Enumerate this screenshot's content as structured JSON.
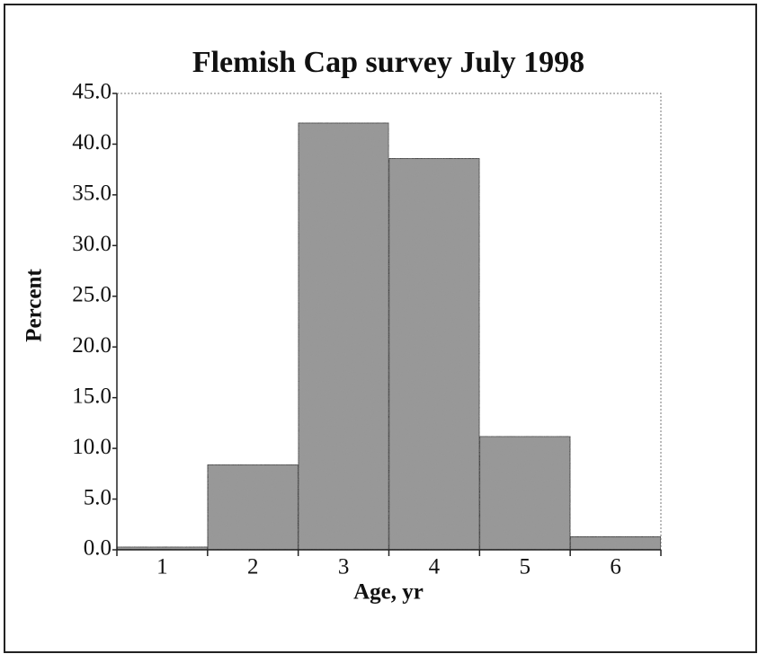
{
  "chart_data": {
    "type": "bar",
    "title": "Flemish Cap survey July 1998",
    "x_label": "Age, yr",
    "y_label": "Percent",
    "categories": [
      "1",
      "2",
      "3",
      "4",
      "5",
      "6"
    ],
    "values": [
      0.3,
      8.4,
      42.1,
      38.6,
      11.2,
      1.3
    ],
    "color": "#9a9a9a",
    "ylim": [
      0,
      45
    ],
    "yticks": [
      {
        "value": 0,
        "label": "0.0"
      },
      {
        "value": 5,
        "label": "5.0"
      },
      {
        "value": 10,
        "label": "10.0"
      },
      {
        "value": 15,
        "label": "15.0"
      },
      {
        "value": 20,
        "label": "20.0"
      },
      {
        "value": 25,
        "label": "25.0"
      },
      {
        "value": 30,
        "label": "30.0"
      },
      {
        "value": 35,
        "label": "35.0"
      },
      {
        "value": 40,
        "label": "40.0"
      },
      {
        "value": 45,
        "label": "45.0"
      }
    ],
    "grid": false
  }
}
